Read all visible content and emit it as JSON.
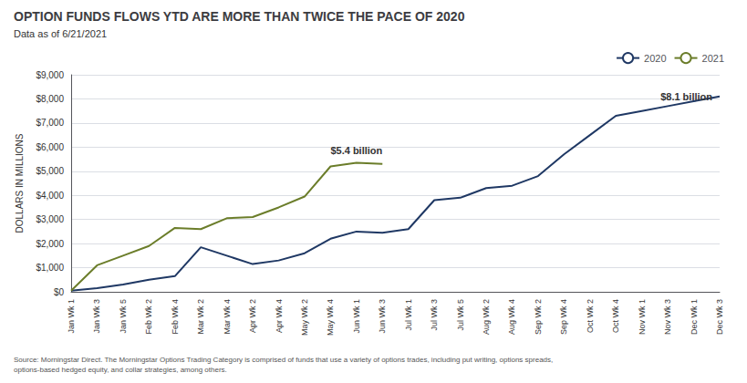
{
  "chart_data": {
    "type": "line",
    "title": "OPTION FUNDS FLOWS YTD ARE MORE THAN TWICE THE PACE OF 2020",
    "subtitle": "Data as of 6/21/2021",
    "ylabel": "DOLLARS IN MILLIONS",
    "source": "Source: Morningstar Direct. The Morningstar Options Trading Category is comprised of funds that use a variety of options trades, including put writing, options spreads,\noptions-based hedged equity, and collar strategies, among others.",
    "categories": [
      "Jan Wk 1",
      "Jan Wk 3",
      "Jan Wk 5",
      "Feb Wk 2",
      "Feb Wk 4",
      "Mar Wk 2",
      "Mar Wk 4",
      "Apr Wk 2",
      "Apr Wk 4",
      "May Wk 2",
      "May Wk 4",
      "Jun Wk 1",
      "Jun Wk 3",
      "Jul Wk 1",
      "Jul Wk 3",
      "Jul Wk 5",
      "Aug Wk 2",
      "Aug Wk 4",
      "Sep Wk 2",
      "Sep Wk 4",
      "Oct Wk 2",
      "Oct Wk 4",
      "Nov Wk 1",
      "Nov Wk 3",
      "Dec Wk 1",
      "Dec Wk 3"
    ],
    "series": [
      {
        "name": "2020",
        "color": "#1f3864",
        "values": [
          50,
          150,
          300,
          500,
          650,
          1850,
          1500,
          1150,
          1300,
          1600,
          2200,
          2500,
          2450,
          2600,
          3800,
          3900,
          4300,
          4400,
          4800,
          5700,
          6500,
          7300,
          7500,
          7700,
          7900,
          8100
        ]
      },
      {
        "name": "2021",
        "color": "#6b7d2a",
        "values": [
          50,
          1100,
          1500,
          1900,
          2650,
          2600,
          3050,
          3100,
          3500,
          3950,
          5200,
          5350,
          5300,
          null,
          null,
          null,
          null,
          null,
          null,
          null,
          null,
          null,
          null,
          null,
          null,
          null
        ]
      }
    ],
    "ylim": [
      0,
      9000
    ],
    "yticks": [
      {
        "value": 0,
        "label": "$0"
      },
      {
        "value": 1000,
        "label": "$1,000"
      },
      {
        "value": 2000,
        "label": "$2,000"
      },
      {
        "value": 3000,
        "label": "$3,000"
      },
      {
        "value": 4000,
        "label": "$4,000"
      },
      {
        "value": 5000,
        "label": "$5,000"
      },
      {
        "value": 6000,
        "label": "$6,000"
      },
      {
        "value": 7000,
        "label": "$7,000"
      },
      {
        "value": 8000,
        "label": "$8,000"
      },
      {
        "value": 9000,
        "label": "$9,000"
      }
    ],
    "grid": true,
    "legend": "upper right",
    "annotations": [
      {
        "text": "$5.4 billion",
        "x": "Jun Wk 1",
        "y": 5350,
        "series": "2021"
      },
      {
        "text": "$8.1 billion",
        "x": "Dec Wk 3",
        "y": 8100,
        "series": "2020"
      }
    ]
  }
}
